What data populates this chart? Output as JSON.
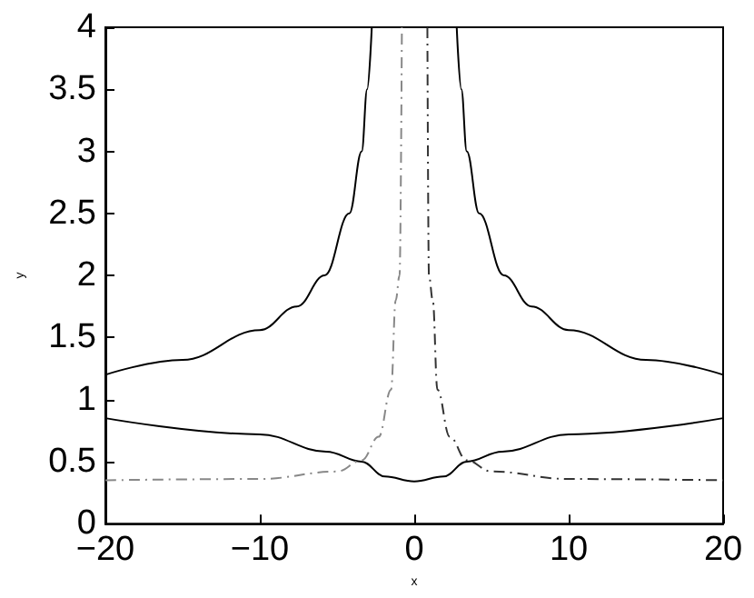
{
  "chart_data": {
    "type": "line",
    "xlabel": "x",
    "ylabel": "y",
    "xlim": [
      -20,
      20
    ],
    "ylim": [
      0,
      4
    ],
    "xticks": [
      -20,
      -10,
      0,
      10,
      20
    ],
    "yticks": [
      0,
      0.5,
      1,
      1.5,
      2,
      2.5,
      3,
      3.5,
      4
    ],
    "grid": false,
    "marker": "none",
    "series": [
      {
        "color": "#000000",
        "line_style": "solid",
        "x": [
          -20,
          -15,
          -10,
          -7.6,
          -5.8,
          -4.2,
          -3.4,
          -3.05,
          -2.75,
          0,
          2.75,
          3.05,
          3.4,
          4.2,
          5.8,
          7.6,
          10,
          15,
          20
        ],
        "values": [
          1.2,
          1.32,
          1.56,
          1.75,
          2,
          2.5,
          3,
          3.5,
          4,
          null,
          4,
          3.5,
          3,
          2.5,
          2,
          1.75,
          1.56,
          1.32,
          1.2
        ]
      },
      {
        "color": "#000000",
        "line_style": "solid",
        "x": [
          -20,
          -10,
          -5.7,
          -3.4,
          -1.9,
          0,
          1.9,
          3.4,
          5.7,
          10,
          20
        ],
        "values": [
          0.85,
          0.72,
          0.58,
          0.5,
          0.38,
          0.34,
          0.38,
          0.5,
          0.58,
          0.72,
          0.85
        ]
      },
      {
        "color": "#888888",
        "line_style": "dashdot",
        "x": [
          -20,
          -10,
          -5,
          -3.4,
          -2.3,
          -1.5,
          -1.2,
          -0.95,
          -0.8
        ],
        "values": [
          0.35,
          0.36,
          0.42,
          0.51,
          0.7,
          1.08,
          1.8,
          2,
          4
        ]
      },
      {
        "color": "#333333",
        "line_style": "dashdot",
        "x": [
          0.85,
          0.95,
          1.2,
          1.5,
          2.3,
          3.4,
          5,
          10,
          20
        ],
        "values": [
          4,
          2,
          1.8,
          1.08,
          0.7,
          0.51,
          0.42,
          0.36,
          0.35
        ]
      }
    ]
  }
}
